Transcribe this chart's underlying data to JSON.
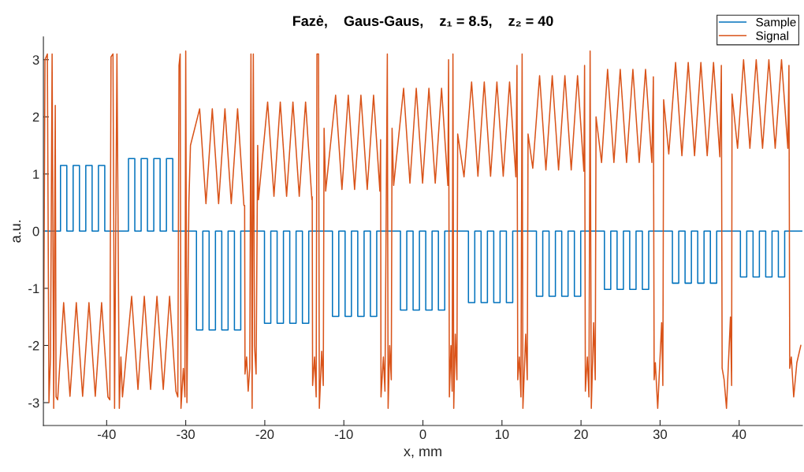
{
  "chart_data": {
    "type": "line",
    "title": "Fazė,    Gaus-Gaus,    z₁ = 8.5,    z₂ = 40",
    "xlabel": "x, mm",
    "ylabel": "a.u.",
    "xlim": [
      -48,
      48
    ],
    "ylim": [
      -3.4,
      3.4
    ],
    "xticks": [
      -40,
      -30,
      -20,
      -10,
      0,
      10,
      20,
      30,
      40
    ],
    "yticks": [
      -3,
      -2,
      -1,
      0,
      1,
      2,
      3
    ],
    "grid": false,
    "legend": "top right",
    "series": [
      {
        "name": "Sample",
        "type": "step",
        "color": "#0072bd",
        "x": [
          -48,
          -45.84,
          -45.04,
          -44.24,
          -43.44,
          -42.64,
          -41.84,
          -41.04,
          -40.24,
          -37.24,
          -36.44,
          -35.64,
          -34.84,
          -34.04,
          -33.24,
          -32.44,
          -31.64,
          -28.64,
          -27.84,
          -27.04,
          -26.24,
          -25.44,
          -24.64,
          -23.84,
          -23.04,
          -20.04,
          -19.24,
          -18.44,
          -17.64,
          -16.84,
          -16.04,
          -15.24,
          -14.44,
          -11.44,
          -10.64,
          -9.84,
          -9.04,
          -8.24,
          -7.44,
          -6.64,
          -5.84,
          -2.84,
          -2.04,
          -1.24,
          -0.44,
          0.36,
          1.16,
          1.96,
          2.76,
          5.76,
          6.56,
          7.36,
          8.16,
          8.96,
          9.76,
          10.56,
          11.36,
          14.36,
          15.16,
          15.96,
          16.76,
          17.56,
          18.36,
          19.16,
          19.96,
          22.96,
          23.76,
          24.56,
          25.36,
          26.16,
          26.96,
          27.76,
          28.56,
          31.56,
          32.36,
          33.16,
          33.96,
          34.76,
          35.56,
          36.36,
          37.16,
          40.16,
          40.96,
          41.76,
          42.56,
          43.36,
          44.16,
          44.96,
          45.76,
          48
        ],
        "values": [
          0,
          1.15,
          0,
          1.15,
          0,
          1.15,
          0,
          1.15,
          0,
          1.27,
          0,
          1.27,
          0,
          1.27,
          0,
          1.27,
          0,
          -1.73,
          0,
          -1.73,
          0,
          -1.73,
          0,
          -1.73,
          0,
          -1.61,
          0,
          -1.61,
          0,
          -1.61,
          0,
          -1.61,
          0,
          -1.49,
          0,
          -1.49,
          0,
          -1.49,
          0,
          -1.49,
          0,
          -1.38,
          0,
          -1.38,
          0,
          -1.38,
          0,
          -1.38,
          0,
          -1.25,
          0,
          -1.25,
          0,
          -1.25,
          0,
          -1.25,
          0,
          -1.14,
          0,
          -1.14,
          0,
          -1.14,
          0,
          -1.14,
          0,
          -1.02,
          0,
          -1.02,
          0,
          -1.02,
          0,
          -1.02,
          0,
          -0.91,
          0,
          -0.91,
          0,
          -0.91,
          0,
          -0.91,
          0,
          -0.8,
          0,
          -0.8,
          0,
          -0.8,
          0,
          -0.8,
          0,
          0
        ]
      },
      {
        "name": "Signal",
        "color": "#d95319",
        "x": [
          -48.0,
          -47.8,
          -47.5,
          -47.3,
          -47.1,
          -46.9,
          -46.7,
          -46.5,
          -46.4,
          -46.2,
          -45.44,
          -44.64,
          -43.84,
          -43.04,
          -42.24,
          -41.44,
          -40.64,
          -39.84,
          -39.6,
          -39.45,
          -39.2,
          -39.0,
          -38.7,
          -38.4,
          -38.2,
          -38.0,
          -36.84,
          -36.04,
          -35.24,
          -34.44,
          -33.64,
          -32.84,
          -32.04,
          -31.24,
          -31.0,
          -30.85,
          -30.7,
          -30.6,
          -30.3,
          -30.1,
          -30.0,
          -29.85,
          -29.6,
          -29.4,
          -28.24,
          -27.44,
          -26.64,
          -25.84,
          -25.04,
          -24.24,
          -23.44,
          -22.64,
          -22.55,
          -22.5,
          -22.3,
          -22.1,
          -21.9,
          -21.75,
          -21.6,
          -21.45,
          -21.3,
          -21.1,
          -20.9,
          -20.8,
          -19.64,
          -18.84,
          -18.04,
          -17.24,
          -16.44,
          -15.64,
          -14.84,
          -14.04,
          -14.0,
          -13.95,
          -13.7,
          -13.5,
          -13.4,
          -13.2,
          -13.1,
          -12.8,
          -12.6,
          -12.5,
          -12.3,
          -11.04,
          -10.24,
          -9.44,
          -8.64,
          -7.84,
          -7.04,
          -6.24,
          -5.44,
          -5.35,
          -5.3,
          -5.0,
          -4.8,
          -4.5,
          -4.4,
          -4.2,
          -4.0,
          -3.9,
          -3.7,
          -2.44,
          -1.64,
          -0.84,
          -0.04,
          0.76,
          1.56,
          2.36,
          3.16,
          3.25,
          3.35,
          3.55,
          3.7,
          3.8,
          3.9,
          4.1,
          4.3,
          4.4,
          5.2,
          6.16,
          6.96,
          7.76,
          8.56,
          9.36,
          10.16,
          10.96,
          11.76,
          11.9,
          12.0,
          12.2,
          12.4,
          12.55,
          12.65,
          13.0,
          13.2,
          13.3,
          13.9,
          14.76,
          15.56,
          16.36,
          17.16,
          17.96,
          18.76,
          19.56,
          20.36,
          20.45,
          20.55,
          20.8,
          21.0,
          21.15,
          21.3,
          21.6,
          21.8,
          21.9,
          22.6,
          23.36,
          24.16,
          24.96,
          25.76,
          26.56,
          27.36,
          28.16,
          28.96,
          29.15,
          29.25,
          29.4,
          29.7,
          30.2,
          30.35,
          30.45,
          31.1,
          31.96,
          32.76,
          33.56,
          34.36,
          35.16,
          35.96,
          36.76,
          37.56,
          37.75,
          37.85,
          38.1,
          38.4,
          38.9,
          39.05,
          39.1,
          39.8,
          40.56,
          41.36,
          42.16,
          42.96,
          43.76,
          44.56,
          45.36,
          46.16,
          46.3,
          46.4,
          46.6,
          46.9,
          47.3,
          47.8
        ],
        "values": [
          -2.95,
          3.0,
          3.1,
          -3.0,
          -2.2,
          3.1,
          -3.1,
          2.2,
          -2.9,
          -2.95,
          -1.25,
          -2.89,
          -1.25,
          -2.89,
          -1.25,
          -2.89,
          -1.25,
          -2.9,
          -2.95,
          3.05,
          3.1,
          -3.1,
          3.1,
          -3.1,
          -2.2,
          -2.9,
          -1.14,
          -2.77,
          -1.14,
          -2.77,
          -1.14,
          -2.77,
          -1.14,
          -2.8,
          -2.9,
          2.9,
          3.1,
          -3.1,
          -2.4,
          -2.9,
          3.15,
          -3.0,
          0.5,
          1.5,
          2.14,
          0.48,
          2.14,
          0.48,
          2.14,
          0.48,
          2.14,
          0.45,
          0.45,
          -2.5,
          -2.2,
          -2.8,
          -2.4,
          3.1,
          -3.1,
          3.1,
          -2.0,
          -2.5,
          1.5,
          0.55,
          2.26,
          0.61,
          2.26,
          0.61,
          2.26,
          0.61,
          2.26,
          0.55,
          0.6,
          -2.7,
          -2.2,
          -2.9,
          3.1,
          3.1,
          -3.1,
          -2.1,
          -2.7,
          1.8,
          0.7,
          2.38,
          0.73,
          2.38,
          0.73,
          2.38,
          0.73,
          2.38,
          0.7,
          1.6,
          -2.9,
          -2.2,
          -2.8,
          3.1,
          -3.1,
          -2.0,
          -2.6,
          1.8,
          0.8,
          2.5,
          0.84,
          2.5,
          0.84,
          2.5,
          0.84,
          2.5,
          0.8,
          3.0,
          -2.9,
          -2.0,
          -2.8,
          3.1,
          -3.1,
          -1.8,
          -2.6,
          1.7,
          0.95,
          2.61,
          0.96,
          2.61,
          0.96,
          2.61,
          0.96,
          2.61,
          0.95,
          2.9,
          -2.6,
          -2.2,
          -2.9,
          3.1,
          -3.1,
          -1.8,
          -2.6,
          1.7,
          1.1,
          2.72,
          1.07,
          2.72,
          1.07,
          2.72,
          1.07,
          2.72,
          1.05,
          2.9,
          -2.8,
          -2.2,
          -2.9,
          3.15,
          -3.1,
          -1.6,
          -2.6,
          2.0,
          1.2,
          2.83,
          1.2,
          2.83,
          1.2,
          2.83,
          1.2,
          2.83,
          1.2,
          2.7,
          -2.6,
          -2.3,
          -3.1,
          -1.6,
          -2.7,
          2.3,
          1.35,
          2.95,
          1.32,
          2.95,
          1.32,
          2.95,
          1.32,
          2.95,
          1.3,
          2.9,
          -2.4,
          -2.6,
          -3.1,
          -1.5,
          -2.7,
          2.4,
          1.45,
          3.0,
          1.45,
          3.0,
          1.45,
          3.0,
          1.45,
          3.0,
          1.45,
          2.9,
          -2.4,
          -2.2,
          -2.9,
          -2.3,
          -2.0
        ]
      }
    ]
  }
}
